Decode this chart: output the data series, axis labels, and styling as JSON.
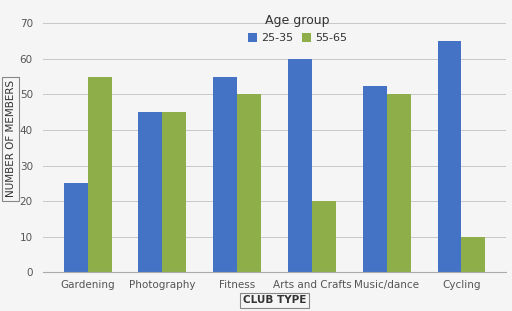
{
  "categories": [
    "Gardening",
    "Photography",
    "Fitness",
    "Arts and Crafts",
    "Music/dance",
    "Cycling"
  ],
  "series": [
    {
      "label": "25-35",
      "values": [
        25,
        45,
        55,
        60,
        52.5,
        65
      ],
      "color": "#4472C4"
    },
    {
      "label": "55-65",
      "values": [
        55,
        45,
        50,
        20,
        50,
        10
      ],
      "color": "#8DAE49"
    }
  ],
  "title": "Age group",
  "xlabel": "CLUB TYPE",
  "ylabel": "NUMBER OF MEMBERS",
  "ylim": [
    0,
    75
  ],
  "yticks": [
    0,
    10,
    20,
    30,
    40,
    50,
    60,
    70
  ],
  "bar_width": 0.32,
  "background_color": "#f5f5f5",
  "grid_color": "#c8c8c8",
  "title_fontsize": 9,
  "label_fontsize": 7.5,
  "tick_fontsize": 7.5,
  "legend_fontsize": 8
}
